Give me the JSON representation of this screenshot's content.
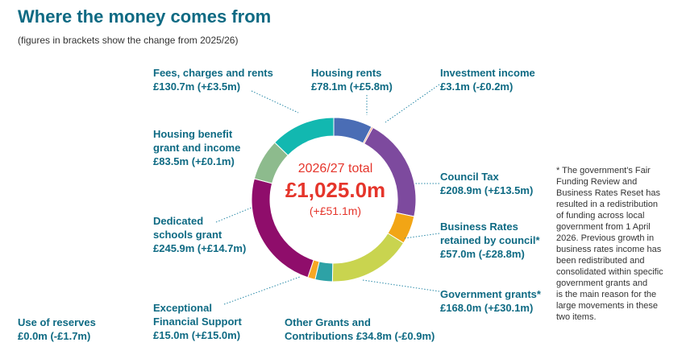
{
  "title": "Where the money comes from",
  "subtitle": "(figures in brackets show the change from 2025/26)",
  "center": {
    "line1": "2026/27 total",
    "line2": "£1,025.0m",
    "line3": "(+£51.1m)"
  },
  "labels": {
    "fees": [
      "Fees, charges and rents",
      "£130.7m (+£3.5m)"
    ],
    "housing_rents": [
      "Housing rents",
      "£78.1m (+£5.8m)"
    ],
    "investment": [
      "Investment income",
      "£3.1m (-£0.2m)"
    ],
    "housing_benefit": [
      "Housing benefit",
      "grant and income",
      "£83.5m (+£0.1m)"
    ],
    "council_tax": [
      "Council Tax",
      "£208.9m (+£13.5m)"
    ],
    "dsg": [
      "Dedicated",
      "schools grant",
      "£245.9m (+£14.7m)"
    ],
    "business_rates": [
      "Business Rates",
      "retained by council*",
      "£57.0m (-£28.8m)"
    ],
    "gov_grants": [
      "Government grants*",
      "£168.0m (+£30.1m)"
    ],
    "exceptional": [
      "Exceptional",
      "Financial Support",
      "£15.0m (+£15.0m)"
    ],
    "other_grants": [
      "Other Grants and",
      "Contributions £34.8m (-£0.9m)"
    ],
    "reserves": [
      "Use of reserves",
      "£0.0m (-£1.7m)"
    ]
  },
  "note": [
    "* The government's Fair",
    "Funding Review and",
    "Business Rates Reset has",
    "resulted in a redistribution",
    "of funding across local",
    "government from 1 April",
    "2026. Previous growth in",
    "business rates income has",
    "been redistributed and",
    "consolidated within specific",
    "government grants and",
    "is the main reason for the",
    "large movements in these",
    "two items."
  ],
  "chart_data": {
    "type": "pie",
    "donut": true,
    "total": 1025.0,
    "categories": [
      "Housing rents",
      "Investment income",
      "Council Tax",
      "Business Rates retained by council*",
      "Government grants*",
      "Other Grants and Contributions",
      "Exceptional Financial Support",
      "Use of reserves",
      "Dedicated schools grant",
      "Housing benefit grant and income",
      "Fees, charges and rents"
    ],
    "values": [
      78.1,
      3.1,
      208.9,
      57.0,
      168.0,
      34.8,
      15.0,
      0.0,
      245.9,
      83.5,
      130.7
    ],
    "changes": [
      5.8,
      -0.2,
      13.5,
      -28.8,
      30.1,
      -0.9,
      15.0,
      -1.7,
      14.7,
      0.1,
      3.5
    ],
    "colors": [
      "#4a6db5",
      "#f07e5c",
      "#7d4a9e",
      "#f2a515",
      "#c9d44f",
      "#2da2a6",
      "#f7a823",
      "#aaaaaa",
      "#8f0d6b",
      "#8dbb8d",
      "#12b8b0"
    ],
    "leader_color": "#2a8aa8"
  }
}
